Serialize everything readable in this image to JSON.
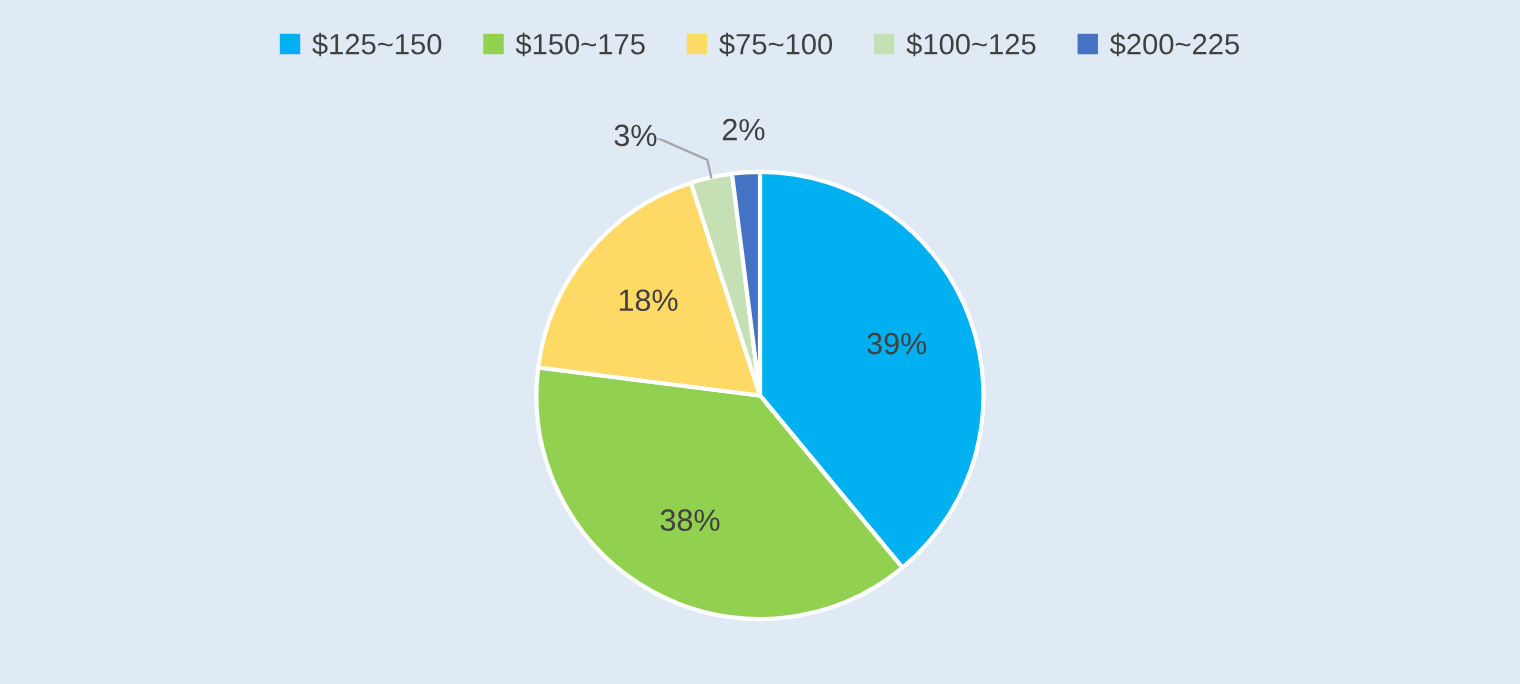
{
  "chart_data": {
    "type": "pie",
    "categories": [
      "$125~150",
      "$150~175",
      "$75~100",
      "$100~125",
      "$200~225"
    ],
    "values": [
      39,
      38,
      18,
      3,
      2
    ],
    "colors": [
      "#00b0f0",
      "#92d050",
      "#ffd966",
      "#c5e0b4",
      "#4472c4"
    ],
    "value_labels": [
      "39%",
      "38%",
      "18%",
      "3%",
      "2%"
    ],
    "legend": "top"
  }
}
